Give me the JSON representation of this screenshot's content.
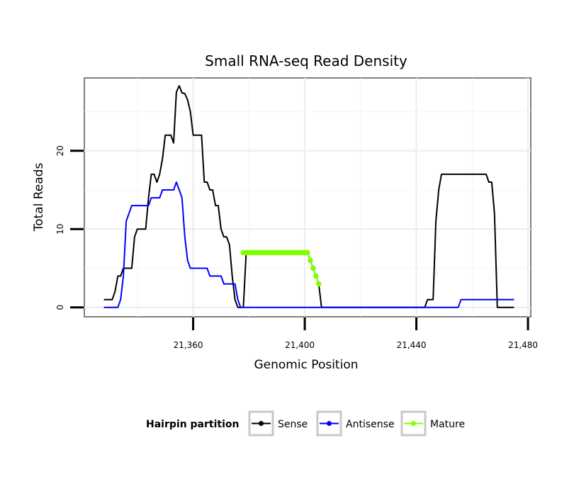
{
  "chart_data": {
    "type": "line",
    "title": "Small RNA-seq Read Density",
    "xlabel": "Genomic Position",
    "ylabel": "Total Reads",
    "xlim": [
      21321,
      21481
    ],
    "ylim": [
      -1.2,
      29.3
    ],
    "x_ticks": [
      21360,
      21400,
      21440,
      21480
    ],
    "x_tick_labels": [
      "21,360",
      "21,400",
      "21,440",
      "21,480"
    ],
    "y_ticks": [
      0,
      10,
      20
    ],
    "y_tick_labels": [
      "0",
      "10",
      "20"
    ],
    "grid": true,
    "legend": {
      "title": "Hairpin partition",
      "position": "bottom",
      "entries": [
        {
          "label": "Sense",
          "color": "#000000"
        },
        {
          "label": "Antisense",
          "color": "#0000ff"
        },
        {
          "label": "Mature",
          "color": "#80ff00"
        }
      ]
    },
    "series": [
      {
        "name": "Sense",
        "color": "#000000",
        "x": [
          21328,
          21329,
          21330,
          21331,
          21332,
          21333,
          21334,
          21335,
          21336,
          21337,
          21338,
          21339,
          21340,
          21341,
          21342,
          21343,
          21344,
          21345,
          21346,
          21347,
          21348,
          21349,
          21350,
          21351,
          21352,
          21353,
          21354,
          21355,
          21356,
          21357,
          21358,
          21359,
          21360,
          21361,
          21362,
          21363,
          21364,
          21365,
          21366,
          21367,
          21368,
          21369,
          21370,
          21371,
          21372,
          21373,
          21374,
          21375,
          21376,
          21377,
          21378,
          21379,
          21380,
          21381,
          21382,
          21383,
          21384,
          21385,
          21386,
          21387,
          21388,
          21389,
          21390,
          21391,
          21392,
          21393,
          21394,
          21395,
          21396,
          21397,
          21398,
          21399,
          21400,
          21401,
          21402,
          21403,
          21404,
          21405,
          21406,
          21420,
          21440,
          21443,
          21444,
          21445,
          21446,
          21447,
          21448,
          21449,
          21450,
          21451,
          21452,
          21453,
          21454,
          21455,
          21456,
          21457,
          21458,
          21459,
          21460,
          21461,
          21462,
          21463,
          21464,
          21465,
          21466,
          21467,
          21468,
          21469,
          21470,
          21471,
          21472,
          21473,
          21474,
          21475
        ],
        "y": [
          1,
          1,
          1,
          1,
          2,
          4,
          4,
          5,
          5,
          5,
          5,
          9,
          10,
          10,
          10,
          10,
          14,
          17,
          17,
          16,
          17,
          19,
          22,
          22,
          22,
          21,
          27.5,
          28.3,
          27.4,
          27.3,
          26.5,
          25,
          22,
          22,
          22,
          22,
          16,
          16,
          15,
          15,
          13,
          13,
          10,
          9,
          9,
          8,
          4,
          1,
          0,
          0,
          0,
          7,
          7,
          7,
          7,
          7,
          7,
          7,
          7,
          7,
          7,
          7,
          7,
          7,
          7,
          7,
          7,
          7,
          7,
          7,
          7,
          7,
          7,
          7,
          6,
          5,
          4,
          3,
          0,
          0,
          0,
          0,
          1,
          1,
          1,
          11,
          15,
          17,
          17,
          17,
          17,
          17,
          17,
          17,
          17,
          17,
          17,
          17,
          17,
          17,
          17,
          17,
          17,
          17,
          16,
          16,
          12,
          0,
          0,
          0,
          0,
          0,
          0,
          0
        ]
      },
      {
        "name": "Antisense",
        "color": "#0000ff",
        "x": [
          21328,
          21329,
          21330,
          21331,
          21332,
          21333,
          21334,
          21335,
          21336,
          21337,
          21338,
          21339,
          21340,
          21341,
          21342,
          21343,
          21344,
          21345,
          21346,
          21347,
          21348,
          21349,
          21350,
          21351,
          21352,
          21353,
          21354,
          21355,
          21356,
          21357,
          21358,
          21359,
          21360,
          21361,
          21362,
          21363,
          21364,
          21365,
          21366,
          21367,
          21368,
          21369,
          21370,
          21371,
          21372,
          21373,
          21374,
          21375,
          21376,
          21377,
          21378,
          21455,
          21456,
          21475
        ],
        "y": [
          0,
          0,
          0,
          0,
          0,
          0,
          1,
          4,
          11,
          12,
          13,
          13,
          13,
          13,
          13,
          13,
          13,
          14,
          14,
          14,
          14,
          15,
          15,
          15,
          15,
          15,
          16,
          15,
          14,
          9,
          6,
          5,
          5,
          5,
          5,
          5,
          5,
          5,
          4,
          4,
          4,
          4,
          4,
          3,
          3,
          3,
          3,
          3,
          1,
          0,
          0,
          0,
          1,
          1
        ]
      },
      {
        "name": "Mature",
        "color": "#80ff00",
        "x": [
          21378,
          21379,
          21380,
          21381,
          21382,
          21383,
          21384,
          21385,
          21386,
          21387,
          21388,
          21389,
          21390,
          21391,
          21392,
          21393,
          21394,
          21395,
          21396,
          21397,
          21398,
          21399,
          21400,
          21401,
          21402,
          21403,
          21404,
          21405
        ],
        "y": [
          7,
          7,
          7,
          7,
          7,
          7,
          7,
          7,
          7,
          7,
          7,
          7,
          7,
          7,
          7,
          7,
          7,
          7,
          7,
          7,
          7,
          7,
          7,
          7,
          6,
          5,
          4,
          3
        ]
      }
    ]
  }
}
